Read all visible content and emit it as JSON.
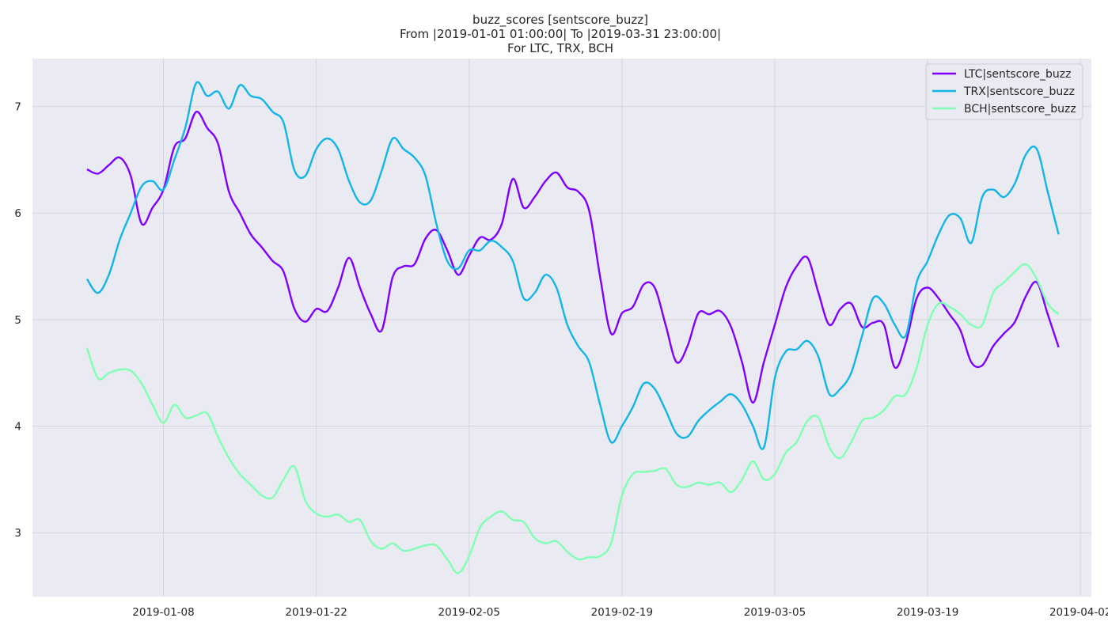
{
  "chart_data": {
    "type": "line",
    "title": [
      "buzz_scores [sentscore_buzz]",
      "From |2019-01-01 01:00:00| To |2019-03-31 23:00:00|",
      "For LTC, TRX, BCH"
    ],
    "xlabel": "",
    "ylabel": "",
    "xlim": [
      "2018-12-27",
      "2019-04-03"
    ],
    "ylim": [
      2.4,
      7.45
    ],
    "x_ticks": [
      "2019-01-08",
      "2019-01-22",
      "2019-02-05",
      "2019-02-19",
      "2019-03-05",
      "2019-03-19",
      "2019-04-02"
    ],
    "y_ticks": [
      3,
      4,
      5,
      6,
      7
    ],
    "grid": true,
    "legend": "top-right",
    "background": "#eaeaf2",
    "series": [
      {
        "name": "LTC|sentscore_buzz",
        "color": "#8000ff",
        "points": [
          [
            "2019-01-01",
            6.41
          ],
          [
            "2019-01-02",
            6.37
          ],
          [
            "2019-01-03",
            6.45
          ],
          [
            "2019-01-04",
            6.52
          ],
          [
            "2019-01-05",
            6.35
          ],
          [
            "2019-01-06",
            5.9
          ],
          [
            "2019-01-07",
            6.05
          ],
          [
            "2019-01-08",
            6.22
          ],
          [
            "2019-01-09",
            6.62
          ],
          [
            "2019-01-10",
            6.7
          ],
          [
            "2019-01-11",
            6.95
          ],
          [
            "2019-01-12",
            6.8
          ],
          [
            "2019-01-13",
            6.65
          ],
          [
            "2019-01-14",
            6.2
          ],
          [
            "2019-01-15",
            6.0
          ],
          [
            "2019-01-16",
            5.8
          ],
          [
            "2019-01-17",
            5.68
          ],
          [
            "2019-01-18",
            5.55
          ],
          [
            "2019-01-19",
            5.45
          ],
          [
            "2019-01-20",
            5.1
          ],
          [
            "2019-01-21",
            4.98
          ],
          [
            "2019-01-22",
            5.1
          ],
          [
            "2019-01-23",
            5.08
          ],
          [
            "2019-01-24",
            5.3
          ],
          [
            "2019-01-25",
            5.58
          ],
          [
            "2019-01-26",
            5.3
          ],
          [
            "2019-01-27",
            5.05
          ],
          [
            "2019-01-28",
            4.9
          ],
          [
            "2019-01-29",
            5.4
          ],
          [
            "2019-01-30",
            5.5
          ],
          [
            "2019-01-31",
            5.52
          ],
          [
            "2019-02-01",
            5.76
          ],
          [
            "2019-02-02",
            5.84
          ],
          [
            "2019-02-03",
            5.65
          ],
          [
            "2019-02-04",
            5.42
          ],
          [
            "2019-02-05",
            5.6
          ],
          [
            "2019-02-06",
            5.77
          ],
          [
            "2019-02-07",
            5.75
          ],
          [
            "2019-02-08",
            5.9
          ],
          [
            "2019-02-09",
            6.32
          ],
          [
            "2019-02-10",
            6.05
          ],
          [
            "2019-02-11",
            6.15
          ],
          [
            "2019-02-12",
            6.3
          ],
          [
            "2019-02-13",
            6.38
          ],
          [
            "2019-02-14",
            6.24
          ],
          [
            "2019-02-15",
            6.2
          ],
          [
            "2019-02-16",
            6.02
          ],
          [
            "2019-02-17",
            5.4
          ],
          [
            "2019-02-18",
            4.87
          ],
          [
            "2019-02-19",
            5.06
          ],
          [
            "2019-02-20",
            5.12
          ],
          [
            "2019-02-21",
            5.33
          ],
          [
            "2019-02-22",
            5.3
          ],
          [
            "2019-02-23",
            4.95
          ],
          [
            "2019-02-24",
            4.6
          ],
          [
            "2019-02-25",
            4.75
          ],
          [
            "2019-02-26",
            5.06
          ],
          [
            "2019-02-27",
            5.05
          ],
          [
            "2019-02-28",
            5.08
          ],
          [
            "2019-03-01",
            4.93
          ],
          [
            "2019-03-02",
            4.6
          ],
          [
            "2019-03-03",
            4.22
          ],
          [
            "2019-03-04",
            4.6
          ],
          [
            "2019-03-05",
            4.95
          ],
          [
            "2019-03-06",
            5.3
          ],
          [
            "2019-03-07",
            5.5
          ],
          [
            "2019-03-08",
            5.58
          ],
          [
            "2019-03-09",
            5.25
          ],
          [
            "2019-03-10",
            4.95
          ],
          [
            "2019-03-11",
            5.1
          ],
          [
            "2019-03-12",
            5.15
          ],
          [
            "2019-03-13",
            4.93
          ],
          [
            "2019-03-14",
            4.97
          ],
          [
            "2019-03-15",
            4.95
          ],
          [
            "2019-03-16",
            4.55
          ],
          [
            "2019-03-17",
            4.78
          ],
          [
            "2019-03-18",
            5.2
          ],
          [
            "2019-03-19",
            5.3
          ],
          [
            "2019-03-20",
            5.2
          ],
          [
            "2019-03-21",
            5.05
          ],
          [
            "2019-03-22",
            4.9
          ],
          [
            "2019-03-23",
            4.6
          ],
          [
            "2019-03-24",
            4.57
          ],
          [
            "2019-03-25",
            4.75
          ],
          [
            "2019-03-26",
            4.87
          ],
          [
            "2019-03-27",
            4.98
          ],
          [
            "2019-03-28",
            5.22
          ],
          [
            "2019-03-29",
            5.35
          ],
          [
            "2019-03-30",
            5.05
          ],
          [
            "2019-03-31",
            4.74
          ]
        ]
      },
      {
        "name": "TRX|sentscore_buzz",
        "color": "#13b5e6",
        "points": [
          [
            "2019-01-01",
            5.38
          ],
          [
            "2019-01-02",
            5.25
          ],
          [
            "2019-01-03",
            5.42
          ],
          [
            "2019-01-04",
            5.75
          ],
          [
            "2019-01-05",
            6.0
          ],
          [
            "2019-01-06",
            6.25
          ],
          [
            "2019-01-07",
            6.3
          ],
          [
            "2019-01-08",
            6.22
          ],
          [
            "2019-01-09",
            6.5
          ],
          [
            "2019-01-10",
            6.8
          ],
          [
            "2019-01-11",
            7.22
          ],
          [
            "2019-01-12",
            7.1
          ],
          [
            "2019-01-13",
            7.14
          ],
          [
            "2019-01-14",
            6.98
          ],
          [
            "2019-01-15",
            7.2
          ],
          [
            "2019-01-16",
            7.1
          ],
          [
            "2019-01-17",
            7.07
          ],
          [
            "2019-01-18",
            6.95
          ],
          [
            "2019-01-19",
            6.85
          ],
          [
            "2019-01-20",
            6.4
          ],
          [
            "2019-01-21",
            6.35
          ],
          [
            "2019-01-22",
            6.6
          ],
          [
            "2019-01-23",
            6.7
          ],
          [
            "2019-01-24",
            6.6
          ],
          [
            "2019-01-25",
            6.3
          ],
          [
            "2019-01-26",
            6.1
          ],
          [
            "2019-01-27",
            6.12
          ],
          [
            "2019-01-28",
            6.4
          ],
          [
            "2019-01-29",
            6.7
          ],
          [
            "2019-01-30",
            6.6
          ],
          [
            "2019-01-31",
            6.52
          ],
          [
            "2019-02-01",
            6.35
          ],
          [
            "2019-02-02",
            5.9
          ],
          [
            "2019-02-03",
            5.55
          ],
          [
            "2019-02-04",
            5.48
          ],
          [
            "2019-02-05",
            5.65
          ],
          [
            "2019-02-06",
            5.65
          ],
          [
            "2019-02-07",
            5.74
          ],
          [
            "2019-02-08",
            5.68
          ],
          [
            "2019-02-09",
            5.55
          ],
          [
            "2019-02-10",
            5.2
          ],
          [
            "2019-02-11",
            5.25
          ],
          [
            "2019-02-12",
            5.42
          ],
          [
            "2019-02-13",
            5.3
          ],
          [
            "2019-02-14",
            4.95
          ],
          [
            "2019-02-15",
            4.75
          ],
          [
            "2019-02-16",
            4.6
          ],
          [
            "2019-02-17",
            4.2
          ],
          [
            "2019-02-18",
            3.85
          ],
          [
            "2019-02-19",
            4.0
          ],
          [
            "2019-02-20",
            4.18
          ],
          [
            "2019-02-21",
            4.4
          ],
          [
            "2019-02-22",
            4.35
          ],
          [
            "2019-02-23",
            4.15
          ],
          [
            "2019-02-24",
            3.93
          ],
          [
            "2019-02-25",
            3.9
          ],
          [
            "2019-02-26",
            4.05
          ],
          [
            "2019-02-27",
            4.15
          ],
          [
            "2019-02-28",
            4.23
          ],
          [
            "2019-03-01",
            4.3
          ],
          [
            "2019-03-02",
            4.2
          ],
          [
            "2019-03-03",
            4.0
          ],
          [
            "2019-03-04",
            3.8
          ],
          [
            "2019-03-05",
            4.45
          ],
          [
            "2019-03-06",
            4.7
          ],
          [
            "2019-03-07",
            4.72
          ],
          [
            "2019-03-08",
            4.8
          ],
          [
            "2019-03-09",
            4.65
          ],
          [
            "2019-03-10",
            4.3
          ],
          [
            "2019-03-11",
            4.35
          ],
          [
            "2019-03-12",
            4.5
          ],
          [
            "2019-03-13",
            4.85
          ],
          [
            "2019-03-14",
            5.2
          ],
          [
            "2019-03-15",
            5.15
          ],
          [
            "2019-03-16",
            4.95
          ],
          [
            "2019-03-17",
            4.85
          ],
          [
            "2019-03-18",
            5.35
          ],
          [
            "2019-03-19",
            5.55
          ],
          [
            "2019-03-20",
            5.8
          ],
          [
            "2019-03-21",
            5.98
          ],
          [
            "2019-03-22",
            5.95
          ],
          [
            "2019-03-23",
            5.72
          ],
          [
            "2019-03-24",
            6.15
          ],
          [
            "2019-03-25",
            6.22
          ],
          [
            "2019-03-26",
            6.15
          ],
          [
            "2019-03-27",
            6.28
          ],
          [
            "2019-03-28",
            6.55
          ],
          [
            "2019-03-29",
            6.6
          ],
          [
            "2019-03-30",
            6.2
          ],
          [
            "2019-03-31",
            5.8
          ]
        ]
      },
      {
        "name": "BCH|sentscore_buzz",
        "color": "#80ffb4",
        "points": [
          [
            "2019-01-01",
            4.73
          ],
          [
            "2019-01-02",
            4.45
          ],
          [
            "2019-01-03",
            4.5
          ],
          [
            "2019-01-04",
            4.53
          ],
          [
            "2019-01-05",
            4.52
          ],
          [
            "2019-01-06",
            4.4
          ],
          [
            "2019-01-07",
            4.2
          ],
          [
            "2019-01-08",
            4.03
          ],
          [
            "2019-01-09",
            4.2
          ],
          [
            "2019-01-10",
            4.08
          ],
          [
            "2019-01-11",
            4.1
          ],
          [
            "2019-01-12",
            4.12
          ],
          [
            "2019-01-13",
            3.9
          ],
          [
            "2019-01-14",
            3.7
          ],
          [
            "2019-01-15",
            3.55
          ],
          [
            "2019-01-16",
            3.45
          ],
          [
            "2019-01-17",
            3.35
          ],
          [
            "2019-01-18",
            3.33
          ],
          [
            "2019-01-19",
            3.5
          ],
          [
            "2019-01-20",
            3.62
          ],
          [
            "2019-01-21",
            3.3
          ],
          [
            "2019-01-22",
            3.18
          ],
          [
            "2019-01-23",
            3.15
          ],
          [
            "2019-01-24",
            3.17
          ],
          [
            "2019-01-25",
            3.1
          ],
          [
            "2019-01-26",
            3.12
          ],
          [
            "2019-01-27",
            2.92
          ],
          [
            "2019-01-28",
            2.85
          ],
          [
            "2019-01-29",
            2.9
          ],
          [
            "2019-01-30",
            2.83
          ],
          [
            "2019-01-31",
            2.85
          ],
          [
            "2019-02-01",
            2.88
          ],
          [
            "2019-02-02",
            2.88
          ],
          [
            "2019-02-03",
            2.75
          ],
          [
            "2019-02-04",
            2.62
          ],
          [
            "2019-02-05",
            2.78
          ],
          [
            "2019-02-06",
            3.05
          ],
          [
            "2019-02-07",
            3.15
          ],
          [
            "2019-02-08",
            3.2
          ],
          [
            "2019-02-09",
            3.12
          ],
          [
            "2019-02-10",
            3.1
          ],
          [
            "2019-02-11",
            2.95
          ],
          [
            "2019-02-12",
            2.9
          ],
          [
            "2019-02-13",
            2.92
          ],
          [
            "2019-02-14",
            2.82
          ],
          [
            "2019-02-15",
            2.75
          ],
          [
            "2019-02-16",
            2.77
          ],
          [
            "2019-02-17",
            2.78
          ],
          [
            "2019-02-18",
            2.9
          ],
          [
            "2019-02-19",
            3.35
          ],
          [
            "2019-02-20",
            3.55
          ],
          [
            "2019-02-21",
            3.57
          ],
          [
            "2019-02-22",
            3.58
          ],
          [
            "2019-02-23",
            3.6
          ],
          [
            "2019-02-24",
            3.45
          ],
          [
            "2019-02-25",
            3.43
          ],
          [
            "2019-02-26",
            3.47
          ],
          [
            "2019-02-27",
            3.45
          ],
          [
            "2019-02-28",
            3.47
          ],
          [
            "2019-03-01",
            3.38
          ],
          [
            "2019-03-02",
            3.5
          ],
          [
            "2019-03-03",
            3.67
          ],
          [
            "2019-03-04",
            3.5
          ],
          [
            "2019-03-05",
            3.55
          ],
          [
            "2019-03-06",
            3.75
          ],
          [
            "2019-03-07",
            3.85
          ],
          [
            "2019-03-08",
            4.05
          ],
          [
            "2019-03-09",
            4.08
          ],
          [
            "2019-03-10",
            3.8
          ],
          [
            "2019-03-11",
            3.7
          ],
          [
            "2019-03-12",
            3.85
          ],
          [
            "2019-03-13",
            4.05
          ],
          [
            "2019-03-14",
            4.08
          ],
          [
            "2019-03-15",
            4.15
          ],
          [
            "2019-03-16",
            4.28
          ],
          [
            "2019-03-17",
            4.3
          ],
          [
            "2019-03-18",
            4.55
          ],
          [
            "2019-03-19",
            4.95
          ],
          [
            "2019-03-20",
            5.15
          ],
          [
            "2019-03-21",
            5.12
          ],
          [
            "2019-03-22",
            5.05
          ],
          [
            "2019-03-23",
            4.95
          ],
          [
            "2019-03-24",
            4.95
          ],
          [
            "2019-03-25",
            5.25
          ],
          [
            "2019-03-26",
            5.35
          ],
          [
            "2019-03-27",
            5.45
          ],
          [
            "2019-03-28",
            5.52
          ],
          [
            "2019-03-29",
            5.38
          ],
          [
            "2019-03-30",
            5.15
          ],
          [
            "2019-03-31",
            5.05
          ]
        ]
      }
    ]
  }
}
